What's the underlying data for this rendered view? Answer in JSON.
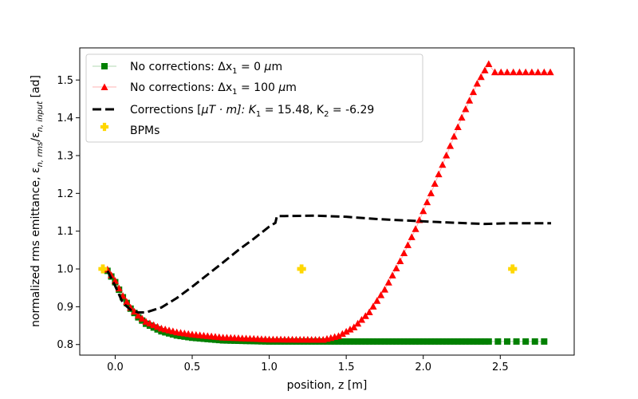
{
  "chart_data": {
    "type": "line",
    "title": "",
    "xlabel": "position, z [m]",
    "ylabel": "normalized rms emittance, ε_{n,rms}/ε_{n,input} [ad]",
    "ylabel_parts": {
      "prefix": "normalized rms emittance, ε",
      "sub1": "n, rms",
      "mid": "/ε",
      "sub2": "n, input",
      "suffix": " [ad]"
    },
    "xlim": [
      -0.23,
      2.98
    ],
    "ylim": [
      0.772,
      1.585
    ],
    "xticks": [
      0.0,
      0.5,
      1.0,
      1.5,
      2.0,
      2.5
    ],
    "xtick_labels": [
      "0.0",
      "0.5",
      "1.0",
      "1.5",
      "2.0",
      "2.5"
    ],
    "yticks": [
      0.8,
      0.9,
      1.0,
      1.1,
      1.2,
      1.3,
      1.4,
      1.5
    ],
    "ytick_labels": [
      "0.8",
      "0.9",
      "1.0",
      "1.1",
      "1.2",
      "1.3",
      "1.4",
      "1.5"
    ],
    "legend": {
      "position": "top-left",
      "entries": [
        {
          "key": "nocorr0",
          "text": "No corrections: Δx₁ = 0 μm",
          "parts": {
            "pre": "No corrections: Δx",
            "sub": "1",
            "post": " = 0 ",
            "greek": "μ",
            "tail": "m"
          }
        },
        {
          "key": "nocorr100",
          "text": "No corrections: Δx₁ = 100 μm",
          "parts": {
            "pre": "No corrections: Δx",
            "sub": "1",
            "post": " = 100 ",
            "greek": "μ",
            "tail": "m"
          }
        },
        {
          "key": "corrections",
          "text": "Corrections [μT·m]: K₁ = 15.48, K₂ = -6.29",
          "parts": {
            "pre": "Corrections [",
            "greek": "μ",
            "mid": "T · m]: K",
            "sub1": "1",
            "mid2": " = 15.48, K",
            "sub2": "2",
            "tail": " = -6.29"
          }
        },
        {
          "key": "bpms",
          "text": "BPMs"
        }
      ]
    },
    "series": [
      {
        "name": "No corrections: Δx1 = 0 μm",
        "color": "#008000",
        "marker": "square",
        "profile": {
          "start": -0.05,
          "end": 2.83,
          "step": 0.025,
          "knots": [
            [
              -0.05,
              0.995
            ],
            [
              0.0,
              0.965
            ],
            [
              0.05,
              0.925
            ],
            [
              0.1,
              0.895
            ],
            [
              0.15,
              0.872
            ],
            [
              0.2,
              0.855
            ],
            [
              0.3,
              0.835
            ],
            [
              0.4,
              0.824
            ],
            [
              0.5,
              0.818
            ],
            [
              0.7,
              0.811
            ],
            [
              1.0,
              0.808
            ],
            [
              2.83,
              0.808
            ]
          ],
          "sparse_after": 2.4,
          "sparse_step": 0.06
        }
      },
      {
        "name": "No corrections: Δx1 = 100 μm",
        "color": "#ff0000",
        "marker": "triangle",
        "profile": {
          "start": -0.05,
          "end": 2.83,
          "step": 0.025,
          "knots": [
            [
              -0.05,
              0.998
            ],
            [
              0.0,
              0.968
            ],
            [
              0.05,
              0.928
            ],
            [
              0.1,
              0.897
            ],
            [
              0.15,
              0.876
            ],
            [
              0.2,
              0.86
            ],
            [
              0.3,
              0.842
            ],
            [
              0.4,
              0.832
            ],
            [
              0.5,
              0.826
            ],
            [
              0.7,
              0.818
            ],
            [
              1.0,
              0.813
            ],
            [
              1.35,
              0.812
            ],
            [
              1.45,
              0.822
            ],
            [
              1.55,
              0.845
            ],
            [
              1.65,
              0.885
            ],
            [
              1.75,
              0.945
            ],
            [
              1.85,
              1.02
            ],
            [
              1.95,
              1.105
            ],
            [
              2.05,
              1.2
            ],
            [
              2.15,
              1.3
            ],
            [
              2.25,
              1.4
            ],
            [
              2.35,
              1.49
            ],
            [
              2.4,
              1.525
            ],
            [
              2.43,
              1.545
            ],
            [
              2.45,
              1.52
            ],
            [
              2.83,
              1.52
            ]
          ],
          "sparse_after": 2.42,
          "sparse_step": 0.04
        }
      },
      {
        "name": "Corrections [μT·m]: K1 = 15.48, K2 = -6.29",
        "color": "#000000",
        "style": "dashed",
        "points": [
          [
            -0.05,
            0.995
          ],
          [
            0.0,
            0.955
          ],
          [
            0.05,
            0.91
          ],
          [
            0.1,
            0.892
          ],
          [
            0.15,
            0.885
          ],
          [
            0.2,
            0.885
          ],
          [
            0.3,
            0.898
          ],
          [
            0.4,
            0.923
          ],
          [
            0.5,
            0.953
          ],
          [
            0.6,
            0.985
          ],
          [
            0.7,
            1.017
          ],
          [
            0.8,
            1.05
          ],
          [
            0.9,
            1.08
          ],
          [
            1.0,
            1.112
          ],
          [
            1.04,
            1.122
          ],
          [
            1.05,
            1.14
          ],
          [
            1.1,
            1.14
          ],
          [
            1.3,
            1.141
          ],
          [
            1.5,
            1.138
          ],
          [
            1.7,
            1.132
          ],
          [
            1.9,
            1.128
          ],
          [
            2.1,
            1.124
          ],
          [
            2.4,
            1.119
          ],
          [
            2.55,
            1.121
          ],
          [
            2.83,
            1.121
          ]
        ]
      },
      {
        "name": "BPMs",
        "color": "#ffd700",
        "marker": "plus",
        "points": [
          [
            -0.08,
            1.0
          ],
          [
            1.21,
            1.0
          ],
          [
            2.58,
            1.0
          ]
        ]
      }
    ]
  }
}
